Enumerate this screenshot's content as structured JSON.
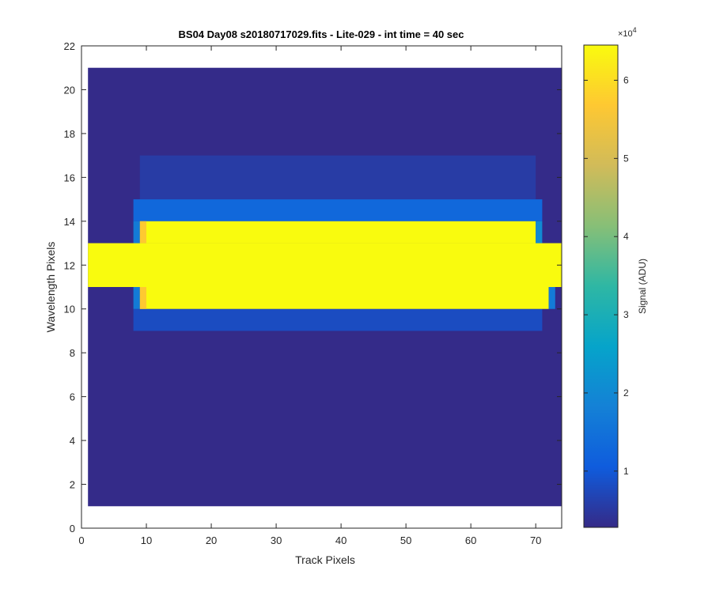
{
  "chart_data": {
    "type": "heatmap",
    "title": "BS04 Day08  s20180717029.fits - Lite-029 - int time = 40 sec",
    "xlabel": "Track Pixels",
    "ylabel": "Wavelength Pixels",
    "xlim": [
      0,
      74
    ],
    "ylim": [
      0,
      22
    ],
    "xticks": [
      0,
      10,
      20,
      30,
      40,
      50,
      60,
      70
    ],
    "yticks": [
      0,
      2,
      4,
      6,
      8,
      10,
      12,
      14,
      16,
      18,
      20,
      22
    ],
    "data_extent": {
      "x": [
        1,
        74
      ],
      "y": [
        1,
        21
      ]
    },
    "colorbar": {
      "label": "Signal (ADU)",
      "multiplier": "×10",
      "exponent": "4",
      "ticks": [
        1,
        2,
        3,
        4,
        5,
        6
      ],
      "range": [
        0.28,
        6.45
      ]
    },
    "colormap": [
      "#352a87",
      "#0f5cdd",
      "#1481d6",
      "#06a4ca",
      "#2eb7a4",
      "#87bf77",
      "#d1bb59",
      "#fec832",
      "#f9fb0e"
    ],
    "background_level": 0.3,
    "regions": [
      {
        "name": "upper-halo-outer",
        "x": [
          9,
          70
        ],
        "y": [
          15,
          17
        ],
        "value": 0.55
      },
      {
        "name": "upper-halo-inner",
        "x": [
          8,
          71
        ],
        "y": [
          14,
          15
        ],
        "value": 1.3
      },
      {
        "name": "lower-halo",
        "x": [
          8,
          71
        ],
        "y": [
          9,
          10
        ],
        "value": 0.8
      },
      {
        "name": "saturated-band-center",
        "x": [
          1,
          74
        ],
        "y": [
          11,
          13
        ],
        "value": 6.45
      },
      {
        "name": "saturated-band-upper",
        "x": [
          9,
          70
        ],
        "y": [
          13,
          14
        ],
        "value": 6.45
      },
      {
        "name": "saturated-band-lower",
        "x": [
          9,
          72
        ],
        "y": [
          10,
          11
        ],
        "value": 6.45
      },
      {
        "name": "edge-left-upper",
        "x": [
          8,
          9
        ],
        "y": [
          13,
          14
        ],
        "value": 1.7
      },
      {
        "name": "edge-left-lower",
        "x": [
          8,
          9
        ],
        "y": [
          10,
          11
        ],
        "value": 1.7
      },
      {
        "name": "edge-orange-upper",
        "x": [
          9,
          10
        ],
        "y": [
          13,
          14
        ],
        "value": 5.7
      },
      {
        "name": "edge-orange-lower",
        "x": [
          9,
          10
        ],
        "y": [
          10,
          11
        ],
        "value": 5.7
      },
      {
        "name": "edge-right-upper",
        "x": [
          70,
          71
        ],
        "y": [
          13,
          14
        ],
        "value": 2.0
      },
      {
        "name": "edge-right-lower",
        "x": [
          72,
          73
        ],
        "y": [
          10,
          11
        ],
        "value": 1.7
      }
    ]
  }
}
